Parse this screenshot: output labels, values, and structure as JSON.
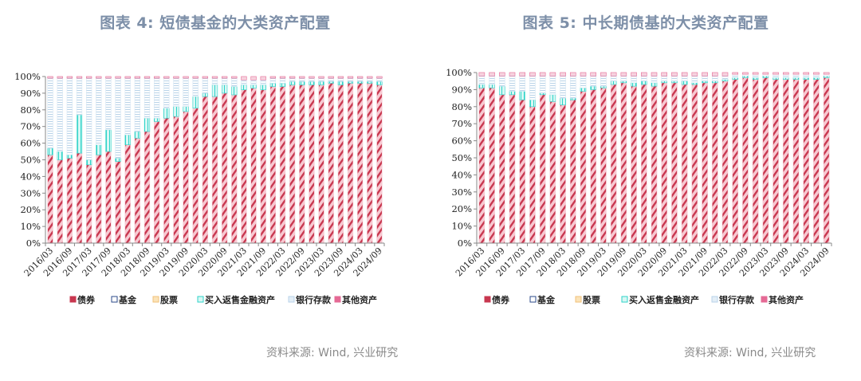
{
  "charts": [
    {
      "title": "图表 4:    短债基金的大类资产配置",
      "source": "资料来源:  Wind, 兴业研究"
    },
    {
      "title": "图表 5:  中长期债基的大类资产配置",
      "source": "资料来源:  Wind, 兴业研究"
    }
  ],
  "colors": {
    "bond": "#c8374f",
    "bond_bg": "#f7c9d2",
    "fund": "#2b4a8a",
    "stock": "#f2c27a",
    "repo": "#2fd3c8",
    "deposit": "#b9d3e8",
    "other": "#e56a95",
    "title": "#7d8fa8",
    "source": "#8a8a8a"
  },
  "chart_data": [
    {
      "type": "bar",
      "stacked": true,
      "title": "图表 4: 短债基金的大类资产配置",
      "xlabel": "",
      "ylabel": "",
      "ylim": [
        0,
        100
      ],
      "yticks": [
        "0%",
        "10%",
        "20%",
        "30%",
        "40%",
        "50%",
        "60%",
        "70%",
        "80%",
        "90%",
        "100%"
      ],
      "xtick_labels": [
        "2016/03",
        "2016/09",
        "2017/03",
        "2017/09",
        "2018/03",
        "2018/09",
        "2019/03",
        "2019/09",
        "2020/03",
        "2020/09",
        "2021/03",
        "2021/09",
        "2022/03",
        "2022/09",
        "2023/03",
        "2023/09",
        "2024/03",
        "2024/09"
      ],
      "categories": [
        "2016/03",
        "2016/06",
        "2016/09",
        "2016/12",
        "2017/03",
        "2017/06",
        "2017/09",
        "2017/12",
        "2018/03",
        "2018/06",
        "2018/09",
        "2018/12",
        "2019/03",
        "2019/06",
        "2019/09",
        "2019/12",
        "2020/03",
        "2020/06",
        "2020/09",
        "2020/12",
        "2021/03",
        "2021/06",
        "2021/09",
        "2021/12",
        "2022/03",
        "2022/06",
        "2022/09",
        "2022/12",
        "2023/03",
        "2023/06",
        "2023/09",
        "2023/12",
        "2024/03",
        "2024/06",
        "2024/09"
      ],
      "legend": [
        "债券",
        "基金",
        "股票",
        "买入返售金融资产",
        "银行存款",
        "其他资产"
      ],
      "legend_position": "bottom",
      "series": [
        {
          "name": "债券",
          "values": [
            53,
            50,
            51,
            54,
            47,
            53,
            55,
            49,
            59,
            63,
            67,
            73,
            75,
            76,
            79,
            81,
            88,
            88,
            90,
            89,
            92,
            93,
            92,
            94,
            94,
            95,
            95,
            95,
            95,
            96,
            95,
            96,
            96,
            96,
            95
          ]
        },
        {
          "name": "基金",
          "values": [
            0,
            0,
            0,
            0,
            0,
            0,
            0,
            0,
            0,
            0,
            0,
            0,
            0,
            0,
            0,
            0,
            0,
            0,
            0,
            0,
            0,
            0,
            0,
            0,
            0,
            0,
            0,
            0,
            0,
            0,
            0,
            0,
            0,
            0,
            0
          ]
        },
        {
          "name": "股票",
          "values": [
            0,
            0,
            0,
            0,
            0,
            0,
            0,
            0,
            0,
            0,
            0,
            0,
            0,
            0,
            0,
            0,
            0,
            0,
            0,
            0,
            0,
            0,
            0,
            0,
            0,
            0,
            0,
            0,
            0,
            0,
            0,
            0,
            0,
            0,
            0
          ]
        },
        {
          "name": "买入返售金融资产",
          "values": [
            4,
            5,
            2,
            23,
            3,
            6,
            13,
            2,
            6,
            4,
            8,
            2,
            6,
            6,
            3,
            7,
            2,
            7,
            5,
            5,
            3,
            2,
            3,
            2,
            2,
            2,
            2,
            2,
            2,
            1,
            2,
            1,
            1,
            1,
            2
          ]
        },
        {
          "name": "银行存款",
          "values": [
            42,
            44,
            46,
            22,
            49,
            40,
            31,
            48,
            34,
            32,
            24,
            24,
            18,
            17,
            17,
            11,
            9,
            4,
            4,
            5,
            3,
            3,
            3,
            3,
            3,
            2,
            2,
            2,
            2,
            2,
            2,
            2,
            2,
            2,
            2
          ]
        },
        {
          "name": "其他资产",
          "values": [
            1,
            1,
            1,
            1,
            1,
            1,
            1,
            1,
            1,
            1,
            1,
            1,
            1,
            1,
            1,
            1,
            1,
            1,
            1,
            1,
            2,
            2,
            2,
            1,
            1,
            1,
            1,
            1,
            1,
            1,
            1,
            1,
            1,
            1,
            1
          ]
        }
      ]
    },
    {
      "type": "bar",
      "stacked": true,
      "title": "图表 5: 中长期债基的大类资产配置",
      "xlabel": "",
      "ylabel": "",
      "ylim": [
        0,
        100
      ],
      "yticks": [
        "0%",
        "10%",
        "20%",
        "30%",
        "40%",
        "50%",
        "60%",
        "70%",
        "80%",
        "90%",
        "100%"
      ],
      "xtick_labels": [
        "2016/03",
        "2016/09",
        "2017/03",
        "2017/09",
        "2018/03",
        "2018/09",
        "2019/03",
        "2019/09",
        "2020/03",
        "2020/09",
        "2021/03",
        "2021/09",
        "2022/03",
        "2022/09",
        "2023/03",
        "2023/09",
        "2024/03",
        "2024/09"
      ],
      "categories": [
        "2016/03",
        "2016/06",
        "2016/09",
        "2016/12",
        "2017/03",
        "2017/06",
        "2017/09",
        "2017/12",
        "2018/03",
        "2018/06",
        "2018/09",
        "2018/12",
        "2019/03",
        "2019/06",
        "2019/09",
        "2019/12",
        "2020/03",
        "2020/06",
        "2020/09",
        "2020/12",
        "2021/03",
        "2021/06",
        "2021/09",
        "2021/12",
        "2022/03",
        "2022/06",
        "2022/09",
        "2022/12",
        "2023/03",
        "2023/06",
        "2023/09",
        "2023/12",
        "2024/03",
        "2024/06",
        "2024/09"
      ],
      "legend": [
        "债券",
        "基金",
        "股票",
        "买入返售金融资产",
        "银行存款",
        "其他资产"
      ],
      "legend_position": "bottom",
      "series": [
        {
          "name": "债券",
          "values": [
            91,
            91,
            87,
            87,
            84,
            80,
            87,
            83,
            81,
            84,
            89,
            90,
            91,
            93,
            94,
            92,
            93,
            92,
            94,
            94,
            93,
            93,
            94,
            94,
            95,
            96,
            97,
            96,
            97,
            96,
            96,
            96,
            96,
            96,
            97
          ]
        },
        {
          "name": "基金",
          "values": [
            0,
            0,
            0,
            0,
            0,
            0,
            0,
            0,
            0,
            0,
            0,
            0,
            0,
            0,
            0,
            0,
            0,
            0,
            0,
            0,
            0,
            0,
            0,
            0,
            0,
            0,
            0,
            0,
            0,
            0,
            0,
            0,
            0,
            0,
            0
          ]
        },
        {
          "name": "股票",
          "values": [
            0,
            0,
            0,
            0,
            0,
            0,
            0,
            0,
            0,
            0,
            0,
            0,
            0,
            0,
            0,
            0,
            0,
            0,
            0,
            0,
            0,
            0,
            0,
            0,
            0,
            0,
            0,
            0,
            0,
            0,
            0,
            0,
            0,
            0,
            0
          ]
        },
        {
          "name": "买入返售金融资产",
          "values": [
            2,
            2,
            5,
            2,
            5,
            4,
            1,
            4,
            4,
            1,
            2,
            2,
            1,
            2,
            1,
            2,
            2,
            2,
            1,
            1,
            2,
            1,
            1,
            1,
            1,
            1,
            1,
            1,
            1,
            1,
            1,
            1,
            1,
            1,
            1
          ]
        },
        {
          "name": "银行存款",
          "values": [
            5,
            5,
            6,
            9,
            9,
            14,
            10,
            11,
            13,
            13,
            7,
            6,
            6,
            3,
            3,
            4,
            3,
            4,
            3,
            3,
            3,
            4,
            3,
            3,
            2,
            2,
            1,
            2,
            1,
            2,
            2,
            2,
            2,
            2,
            1
          ]
        },
        {
          "name": "其他资产",
          "values": [
            2,
            2,
            2,
            2,
            2,
            2,
            2,
            2,
            2,
            2,
            2,
            2,
            2,
            2,
            2,
            2,
            2,
            2,
            2,
            2,
            2,
            2,
            2,
            2,
            2,
            1,
            1,
            1,
            1,
            1,
            1,
            1,
            1,
            1,
            1
          ]
        }
      ]
    }
  ]
}
